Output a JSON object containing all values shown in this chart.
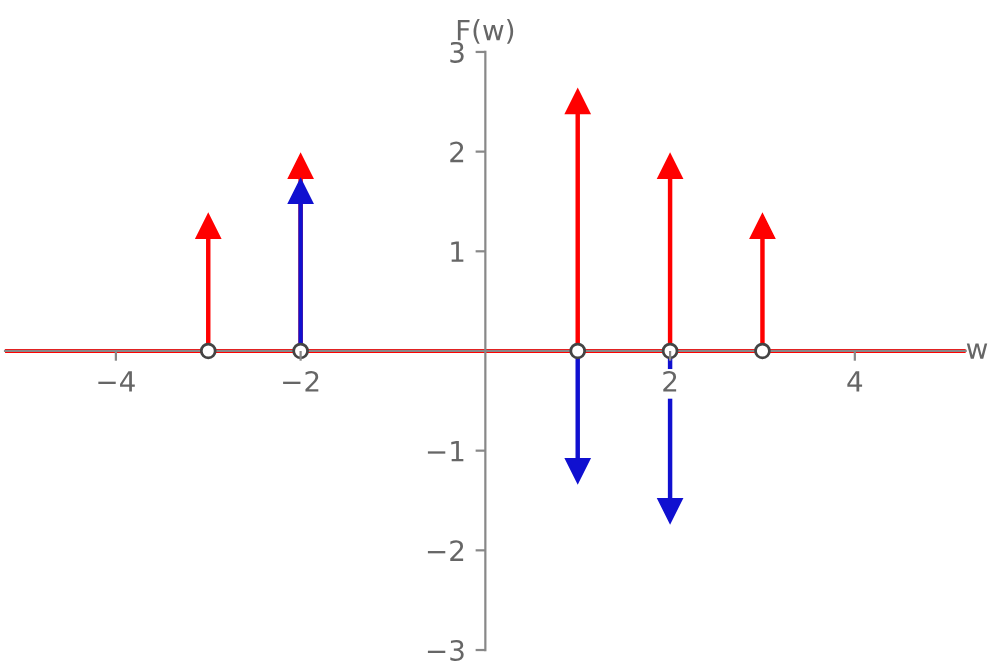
{
  "chart_data": {
    "type": "lollipop",
    "xlabel": "w",
    "ylabel": "F(w)",
    "x": [
      -3,
      -2,
      1,
      2,
      3
    ],
    "series": [
      {
        "color": "#ff0000",
        "values": [
          1.25,
          1.85,
          2.5,
          1.85,
          1.25
        ]
      },
      {
        "color": "#1010d0",
        "values": [
          null,
          1.6,
          -1.2,
          -1.6,
          null
        ]
      }
    ],
    "xlim": [
      -5.2,
      5.2
    ],
    "ylim": [
      -3,
      3
    ],
    "xticks": [
      -4,
      -2,
      2,
      4
    ],
    "yticks": [
      -3,
      -2,
      -1,
      1,
      2,
      3
    ],
    "marker": "triangle",
    "grid": false
  }
}
